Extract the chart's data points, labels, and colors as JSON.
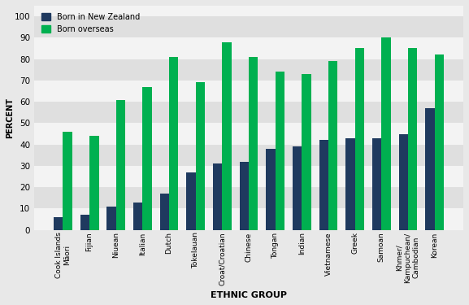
{
  "categories": [
    "Cook Islands\nMāori",
    "Fijian",
    "Niuean",
    "Italian",
    "Dutch",
    "Tokelauan",
    "Croat/Croatian",
    "Chinese",
    "Tongan",
    "Indian",
    "Vietnamese",
    "Greek",
    "Samoan",
    "Khmer/\nKampuchean/\nCambodian",
    "Korean"
  ],
  "born_nz": [
    6,
    7,
    11,
    13,
    17,
    27,
    31,
    32,
    38,
    39,
    42,
    43,
    43,
    45,
    57
  ],
  "born_overseas": [
    46,
    44,
    61,
    67,
    81,
    69,
    88,
    81,
    74,
    73,
    79,
    85,
    90,
    85,
    82
  ],
  "color_nz": "#1f3a5f",
  "color_os": "#00b050",
  "bg_color": "#e8e8e8",
  "stripe_color": "#d3d3d3",
  "xlabel": "ETHNIC GROUP",
  "ylabel": "PERCENT",
  "ylim": [
    0,
    105
  ],
  "yticks": [
    0,
    10,
    20,
    30,
    40,
    50,
    60,
    70,
    80,
    90,
    100
  ],
  "legend_nz": "Born in New Zealand",
  "legend_os": "Born overseas",
  "title": ""
}
